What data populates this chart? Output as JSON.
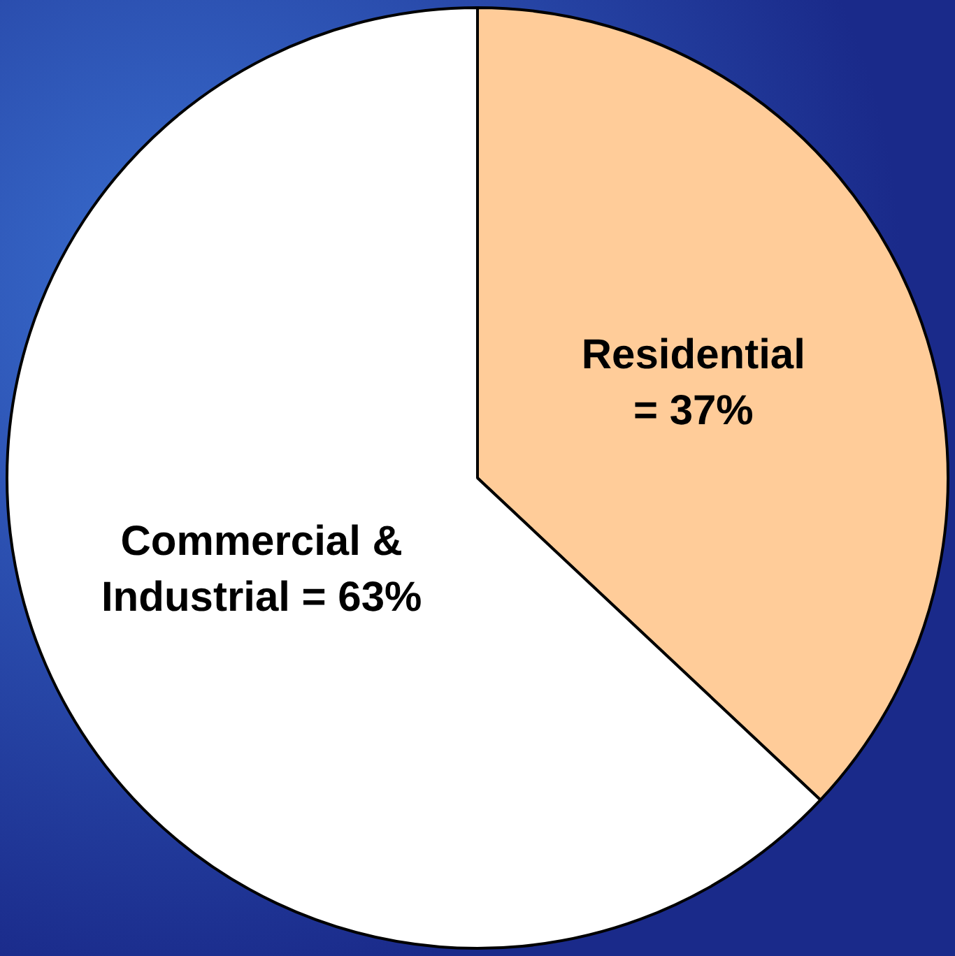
{
  "chart_data": {
    "type": "pie",
    "categories": [
      "Residential",
      "Commercial & Industrial"
    ],
    "values": [
      37,
      63
    ],
    "colors": [
      "#ffcc99",
      "#ffffff"
    ],
    "value_labels": [
      "= 37%",
      "= 63%"
    ],
    "legend": false
  }
}
